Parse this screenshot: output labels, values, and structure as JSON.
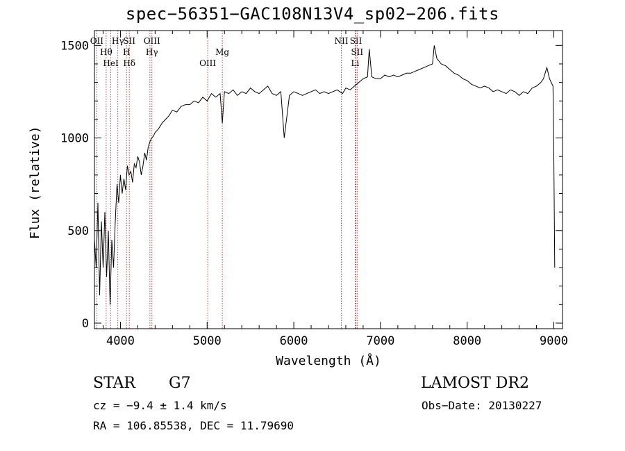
{
  "chart_data": {
    "type": "line",
    "title": "spec−56351−GAC108N13V4_sp02−206.fits",
    "xlabel": "Wavelength (Å)",
    "ylabel": "Flux (relative)",
    "xlim": [
      3700,
      9100
    ],
    "ylim": [
      -30,
      1580
    ],
    "xticks": [
      4000,
      5000,
      6000,
      7000,
      8000,
      9000
    ],
    "yticks": [
      0,
      500,
      1000,
      1500
    ],
    "xtick_labels": [
      "4000",
      "5000",
      "6000",
      "7000",
      "8000",
      "9000"
    ],
    "ytick_labels": [
      "0",
      "500",
      "1000",
      "1500"
    ],
    "grid": false,
    "series": [
      {
        "x": [
          3700,
          3720,
          3740,
          3760,
          3780,
          3800,
          3820,
          3840,
          3860,
          3880,
          3900,
          3920,
          3940,
          3960,
          3980,
          4000,
          4020,
          4040,
          4060,
          4080,
          4100,
          4120,
          4140,
          4160,
          4180,
          4200,
          4220,
          4240,
          4260,
          4280,
          4300,
          4320,
          4340,
          4360,
          4380,
          4400,
          4440,
          4480,
          4520,
          4560,
          4600,
          4650,
          4700,
          4750,
          4800,
          4850,
          4900,
          4950,
          5000,
          5050,
          5100,
          5150,
          5175,
          5200,
          5250,
          5300,
          5350,
          5400,
          5450,
          5500,
          5550,
          5600,
          5650,
          5700,
          5750,
          5800,
          5850,
          5890,
          5950,
          6000,
          6050,
          6100,
          6150,
          6200,
          6250,
          6300,
          6350,
          6400,
          6450,
          6500,
          6563,
          6600,
          6650,
          6700,
          6750,
          6800,
          6850,
          6870,
          6900,
          6950,
          7000,
          7050,
          7100,
          7150,
          7200,
          7250,
          7300,
          7350,
          7400,
          7450,
          7500,
          7550,
          7600,
          7620,
          7650,
          7700,
          7750,
          7800,
          7850,
          7900,
          7950,
          8000,
          8050,
          8100,
          8150,
          8200,
          8250,
          8300,
          8350,
          8400,
          8450,
          8500,
          8550,
          8600,
          8650,
          8700,
          8750,
          8800,
          8850,
          8880,
          8900,
          8920,
          8950,
          8970,
          8990,
          9000,
          9010
        ],
        "y": [
          450,
          300,
          650,
          150,
          550,
          300,
          600,
          250,
          500,
          100,
          450,
          300,
          550,
          750,
          650,
          800,
          700,
          780,
          720,
          850,
          800,
          820,
          760,
          860,
          840,
          900,
          870,
          800,
          850,
          920,
          880,
          950,
          980,
          1000,
          1010,
          1030,
          1050,
          1080,
          1100,
          1120,
          1150,
          1140,
          1170,
          1180,
          1180,
          1200,
          1190,
          1220,
          1200,
          1240,
          1220,
          1240,
          1080,
          1250,
          1240,
          1260,
          1230,
          1250,
          1240,
          1270,
          1250,
          1240,
          1260,
          1280,
          1240,
          1230,
          1250,
          1000,
          1230,
          1250,
          1240,
          1230,
          1240,
          1250,
          1260,
          1240,
          1250,
          1240,
          1250,
          1260,
          1240,
          1270,
          1260,
          1280,
          1300,
          1320,
          1330,
          1480,
          1330,
          1320,
          1320,
          1340,
          1330,
          1340,
          1330,
          1340,
          1350,
          1350,
          1360,
          1370,
          1380,
          1390,
          1400,
          1500,
          1430,
          1400,
          1390,
          1370,
          1350,
          1340,
          1320,
          1310,
          1290,
          1280,
          1270,
          1280,
          1270,
          1250,
          1260,
          1250,
          1240,
          1260,
          1250,
          1230,
          1250,
          1240,
          1270,
          1280,
          1300,
          1320,
          1350,
          1380,
          1320,
          1300,
          1280,
          900,
          300
        ]
      }
    ],
    "lines": [
      {
        "x": 3727,
        "l1": "OII",
        "l2": "",
        "l3": ""
      },
      {
        "x": 3835,
        "l1": "",
        "l2": "Hθ",
        "l3": ""
      },
      {
        "x": 3889,
        "l1": "",
        "l2": "",
        "l3": "HeI"
      },
      {
        "x": 3970,
        "l1": "Hγ",
        "l2": "",
        "l3": ""
      },
      {
        "x": 4070,
        "l1": "",
        "l2": "H",
        "l3": ""
      },
      {
        "x": 4102,
        "l1": "SII",
        "l2": "",
        "l3": "Hδ"
      },
      {
        "x": 4340,
        "l1": "",
        "l2": "",
        "l3": ""
      },
      {
        "x": 4363,
        "l1": "OIII",
        "l2": "Hγ",
        "l3": ""
      },
      {
        "x": 5007,
        "l1": "",
        "l2": "",
        "l3": "OIII"
      },
      {
        "x": 5175,
        "l1": "",
        "l2": "Mg",
        "l3": ""
      },
      {
        "x": 6548,
        "l1": "NII",
        "l2": "",
        "l3": ""
      },
      {
        "x": 6708,
        "l1": "",
        "l2": "",
        "l3": "Li"
      },
      {
        "x": 6717,
        "l1": "SII",
        "l2": "",
        "l3": ""
      },
      {
        "x": 6731,
        "l1": "",
        "l2": "SII",
        "l3": ""
      }
    ]
  },
  "info": {
    "class": "STAR",
    "subclass": "G7",
    "survey": "LAMOST DR2",
    "cz": "cz = −9.4 ± 1.4 km/s",
    "obs_date": "Obs−Date: 20130227",
    "radec": "RA = 106.85538, DEC =  11.79690"
  }
}
